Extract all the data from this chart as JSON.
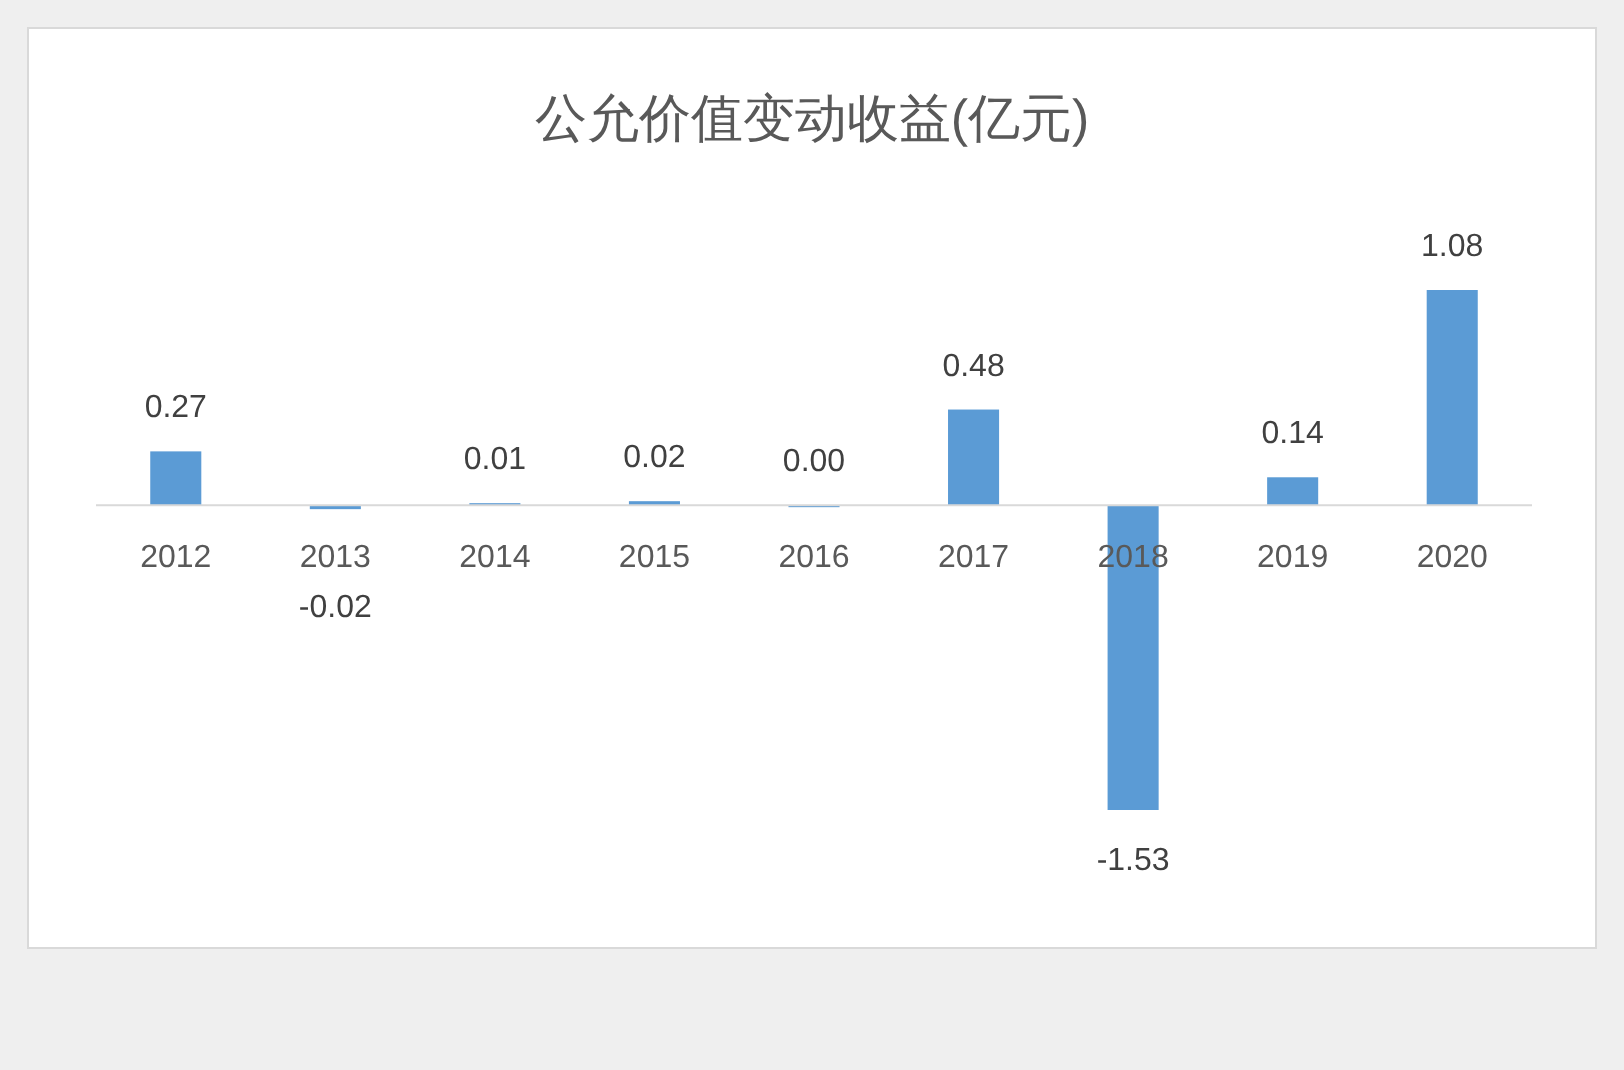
{
  "chart_data": {
    "type": "bar",
    "title": "公允价值变动收益(亿元)",
    "categories": [
      "2012",
      "2013",
      "2014",
      "2015",
      "2016",
      "2017",
      "2018",
      "2019",
      "2020"
    ],
    "values": [
      0.27,
      -0.02,
      0.01,
      0.02,
      0.0,
      0.48,
      -1.53,
      0.14,
      1.08
    ],
    "value_labels": [
      "0.27",
      "-0.02",
      "0.01",
      "0.02",
      "0.00",
      "0.48",
      "-1.53",
      "0.14",
      "1.08"
    ],
    "color": "#5b9bd5"
  }
}
